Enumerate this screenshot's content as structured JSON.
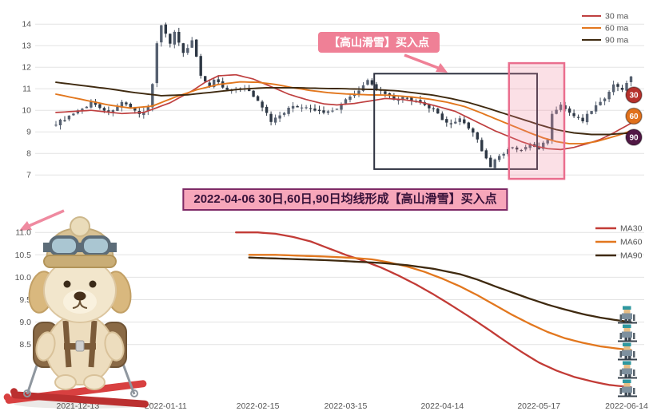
{
  "banner": {
    "text": "2022-04-06 30日,60日,90日均线形成【高山滑雪】买入点"
  },
  "chart_data": [
    {
      "id": "candlestick-panel",
      "type": "candlestick",
      "ylim": [
        6.75,
        14.6
      ],
      "yticks": [
        7,
        8,
        9,
        10,
        11,
        12,
        13,
        14
      ],
      "x_axis": {
        "unit": "trading-day-index",
        "domain": [
          -4,
          134
        ],
        "labels_shown": false
      },
      "legend": [
        {
          "label": "30 ma",
          "color": "#bf4040"
        },
        {
          "label": "60 ma",
          "color": "#e2771e"
        },
        {
          "label": "90 ma",
          "color": "#3f2a10"
        }
      ],
      "badges": [
        {
          "label": "30",
          "color": "#b5312c"
        },
        {
          "label": "60",
          "color": "#e0711c"
        },
        {
          "label": "90",
          "color": "#511845"
        }
      ],
      "annotation": {
        "text": "【高山滑雪】买入点",
        "bg": "#ef8096",
        "text_color": "#ffffff"
      },
      "black_box": {
        "days": [
          72.5,
          109.6
        ],
        "values": [
          7.27,
          11.7
        ],
        "stroke": "#2e3240"
      },
      "pink_box": {
        "days": [
          103.2,
          115.8
        ],
        "values": [
          6.82,
          12.19
        ],
        "stroke": "#ea6e8e",
        "fill": "rgba(238,130,155,0.25)"
      },
      "candle_colors": {
        "up": "#566070",
        "down": "#2e3845"
      },
      "candle_close_keypoints": [
        [
          0,
          9.4
        ],
        [
          3,
          9.7
        ],
        [
          6,
          10.05
        ],
        [
          8,
          10.4
        ],
        [
          12,
          9.9
        ],
        [
          15,
          10.35
        ],
        [
          19,
          9.8
        ],
        [
          21,
          10.2
        ],
        [
          22,
          11.2
        ],
        [
          23,
          13.1
        ],
        [
          24,
          14.0
        ],
        [
          26,
          13.1
        ],
        [
          27,
          13.6
        ],
        [
          29,
          12.6
        ],
        [
          31,
          13.3
        ],
        [
          33,
          11.6
        ],
        [
          35,
          11.15
        ],
        [
          36,
          11.45
        ],
        [
          39,
          10.9
        ],
        [
          43,
          11.0
        ],
        [
          46,
          10.5
        ],
        [
          49,
          9.5
        ],
        [
          51,
          9.8
        ],
        [
          54,
          10.2
        ],
        [
          57,
          10.1
        ],
        [
          61,
          9.9
        ],
        [
          64,
          10.1
        ],
        [
          67,
          10.7
        ],
        [
          69,
          10.9
        ],
        [
          71,
          11.35
        ],
        [
          73,
          11.0
        ],
        [
          75,
          10.7
        ],
        [
          77,
          10.5
        ],
        [
          80,
          10.6
        ],
        [
          83,
          10.3
        ],
        [
          86,
          10.0
        ],
        [
          88,
          9.6
        ],
        [
          90,
          9.35
        ],
        [
          92,
          9.6
        ],
        [
          94,
          9.2
        ],
        [
          96,
          8.7
        ],
        [
          97,
          8.1
        ],
        [
          99,
          7.35
        ],
        [
          100,
          7.7
        ],
        [
          102,
          8.0
        ],
        [
          104,
          8.3
        ],
        [
          106,
          8.1
        ],
        [
          108,
          8.45
        ],
        [
          110,
          8.2
        ],
        [
          112,
          8.7
        ],
        [
          113,
          9.8
        ],
        [
          115,
          10.3
        ],
        [
          116,
          10.0
        ],
        [
          118,
          9.7
        ],
        [
          120,
          9.55
        ],
        [
          122,
          10.0
        ],
        [
          124,
          10.4
        ],
        [
          126,
          10.8
        ],
        [
          127,
          11.25
        ],
        [
          129,
          11.0
        ],
        [
          131,
          11.5
        ]
      ],
      "series": [
        {
          "name": "30 ma",
          "color": "#bf4040",
          "width": 1.7,
          "points": [
            [
              0,
              9.9
            ],
            [
              8,
              10.0
            ],
            [
              15,
              9.85
            ],
            [
              20,
              9.9
            ],
            [
              26,
              10.35
            ],
            [
              31,
              10.9
            ],
            [
              34,
              11.3
            ],
            [
              37,
              11.6
            ],
            [
              41,
              11.65
            ],
            [
              45,
              11.45
            ],
            [
              49,
              11.1
            ],
            [
              53,
              10.75
            ],
            [
              57,
              10.5
            ],
            [
              61,
              10.3
            ],
            [
              64,
              10.25
            ],
            [
              68,
              10.32
            ],
            [
              72,
              10.45
            ],
            [
              75,
              10.55
            ],
            [
              79,
              10.5
            ],
            [
              83,
              10.38
            ],
            [
              87,
              10.18
            ],
            [
              91,
              9.95
            ],
            [
              94,
              9.65
            ],
            [
              97,
              9.35
            ],
            [
              100,
              9.05
            ],
            [
              103,
              8.8
            ],
            [
              106,
              8.55
            ],
            [
              109,
              8.35
            ],
            [
              112,
              8.22
            ],
            [
              115,
              8.18
            ],
            [
              118,
              8.28
            ],
            [
              121,
              8.45
            ],
            [
              124,
              8.65
            ],
            [
              127,
              8.95
            ],
            [
              131,
              9.4
            ]
          ]
        },
        {
          "name": "60 ma",
          "color": "#e2771e",
          "width": 1.9,
          "points": [
            [
              0,
              10.75
            ],
            [
              6,
              10.5
            ],
            [
              12,
              10.25
            ],
            [
              17,
              10.1
            ],
            [
              22,
              10.2
            ],
            [
              27,
              10.6
            ],
            [
              32,
              10.95
            ],
            [
              37,
              11.2
            ],
            [
              42,
              11.32
            ],
            [
              46,
              11.3
            ],
            [
              50,
              11.2
            ],
            [
              54,
              11.05
            ],
            [
              58,
              10.92
            ],
            [
              62,
              10.82
            ],
            [
              66,
              10.76
            ],
            [
              71,
              10.72
            ],
            [
              76,
              10.7
            ],
            [
              81,
              10.62
            ],
            [
              85,
              10.52
            ],
            [
              89,
              10.38
            ],
            [
              93,
              10.18
            ],
            [
              96,
              9.95
            ],
            [
              99,
              9.7
            ],
            [
              102,
              9.45
            ],
            [
              105,
              9.2
            ],
            [
              108,
              8.95
            ],
            [
              111,
              8.72
            ],
            [
              114,
              8.55
            ],
            [
              117,
              8.45
            ],
            [
              120,
              8.45
            ],
            [
              123,
              8.55
            ],
            [
              126,
              8.72
            ],
            [
              129,
              8.9
            ],
            [
              131,
              9.05
            ]
          ]
        },
        {
          "name": "90 ma",
          "color": "#3f2a10",
          "width": 1.9,
          "points": [
            [
              0,
              11.3
            ],
            [
              6,
              11.15
            ],
            [
              12,
              11.0
            ],
            [
              18,
              10.82
            ],
            [
              24,
              10.68
            ],
            [
              30,
              10.72
            ],
            [
              36,
              10.85
            ],
            [
              42,
              10.98
            ],
            [
              48,
              11.05
            ],
            [
              54,
              11.05
            ],
            [
              60,
              11.02
            ],
            [
              66,
              11.0
            ],
            [
              72,
              10.97
            ],
            [
              78,
              10.9
            ],
            [
              82,
              10.8
            ],
            [
              86,
              10.7
            ],
            [
              90,
              10.55
            ],
            [
              94,
              10.36
            ],
            [
              98,
              10.12
            ],
            [
              102,
              9.86
            ],
            [
              106,
              9.6
            ],
            [
              110,
              9.34
            ],
            [
              114,
              9.1
            ],
            [
              118,
              8.95
            ],
            [
              122,
              8.88
            ],
            [
              126,
              8.88
            ],
            [
              131,
              8.95
            ]
          ]
        }
      ]
    },
    {
      "id": "ma-detail-panel",
      "type": "line",
      "ylim": [
        7.25,
        11.2
      ],
      "yticks": [
        8.5,
        9.0,
        9.5,
        10.0,
        10.5,
        11.0
      ],
      "ytick_labels": [
        "8.5",
        "9.0",
        "9.5",
        "10.0",
        "10.5",
        "11.0"
      ],
      "xticks": [
        {
          "day": 5,
          "label": "2021-12-13"
        },
        {
          "day": 25,
          "label": "2022-01-11"
        },
        {
          "day": 46,
          "label": "2022-02-15"
        },
        {
          "day": 66,
          "label": "2022-03-15"
        },
        {
          "day": 88,
          "label": "2022-04-14"
        },
        {
          "day": 110,
          "label": "2022-05-17"
        },
        {
          "day": 130,
          "label": "2022-06-14"
        }
      ],
      "legend": [
        {
          "label": "MA30",
          "color": "#c23b36"
        },
        {
          "label": "MA60",
          "color": "#e2771e"
        },
        {
          "label": "MA90",
          "color": "#3f2a10"
        }
      ],
      "series": [
        {
          "name": "MA30",
          "color": "#c23b36",
          "width": 2.3,
          "points": [
            [
              41,
              11.0
            ],
            [
              46,
              11.0
            ],
            [
              50,
              10.97
            ],
            [
              54,
              10.9
            ],
            [
              58,
              10.8
            ],
            [
              62,
              10.65
            ],
            [
              66,
              10.5
            ],
            [
              70,
              10.37
            ],
            [
              74,
              10.22
            ],
            [
              78,
              10.04
            ],
            [
              82,
              9.84
            ],
            [
              86,
              9.62
            ],
            [
              90,
              9.38
            ],
            [
              94,
              9.13
            ],
            [
              98,
              8.87
            ],
            [
              102,
              8.6
            ],
            [
              106,
              8.34
            ],
            [
              110,
              8.1
            ],
            [
              114,
              7.92
            ],
            [
              118,
              7.78
            ],
            [
              122,
              7.68
            ],
            [
              126,
              7.6
            ],
            [
              131,
              7.55
            ]
          ]
        },
        {
          "name": "MA60",
          "color": "#e2771e",
          "width": 2.3,
          "points": [
            [
              44,
              10.5
            ],
            [
              50,
              10.5
            ],
            [
              56,
              10.48
            ],
            [
              62,
              10.46
            ],
            [
              68,
              10.43
            ],
            [
              72,
              10.4
            ],
            [
              76,
              10.33
            ],
            [
              80,
              10.24
            ],
            [
              84,
              10.12
            ],
            [
              88,
              9.97
            ],
            [
              92,
              9.8
            ],
            [
              96,
              9.6
            ],
            [
              100,
              9.38
            ],
            [
              104,
              9.16
            ],
            [
              108,
              8.96
            ],
            [
              112,
              8.78
            ],
            [
              116,
              8.64
            ],
            [
              120,
              8.54
            ],
            [
              124,
              8.46
            ],
            [
              128,
              8.41
            ],
            [
              131,
              8.38
            ]
          ]
        },
        {
          "name": "MA90",
          "color": "#3f2a10",
          "width": 2.3,
          "points": [
            [
              44,
              10.44
            ],
            [
              50,
              10.42
            ],
            [
              56,
              10.4
            ],
            [
              62,
              10.38
            ],
            [
              68,
              10.35
            ],
            [
              74,
              10.32
            ],
            [
              80,
              10.27
            ],
            [
              86,
              10.19
            ],
            [
              92,
              10.07
            ],
            [
              96,
              9.95
            ],
            [
              100,
              9.8
            ],
            [
              104,
              9.66
            ],
            [
              108,
              9.52
            ],
            [
              112,
              9.39
            ],
            [
              116,
              9.28
            ],
            [
              120,
              9.18
            ],
            [
              124,
              9.1
            ],
            [
              128,
              9.04
            ],
            [
              131,
              9.0
            ]
          ]
        }
      ]
    }
  ],
  "decor": {
    "dog_illustration": "puppy-wearing-goggles-and-backpack-on-red-skis",
    "skier_sprite_count": 5,
    "arrow_color": "#ef8aa0"
  }
}
